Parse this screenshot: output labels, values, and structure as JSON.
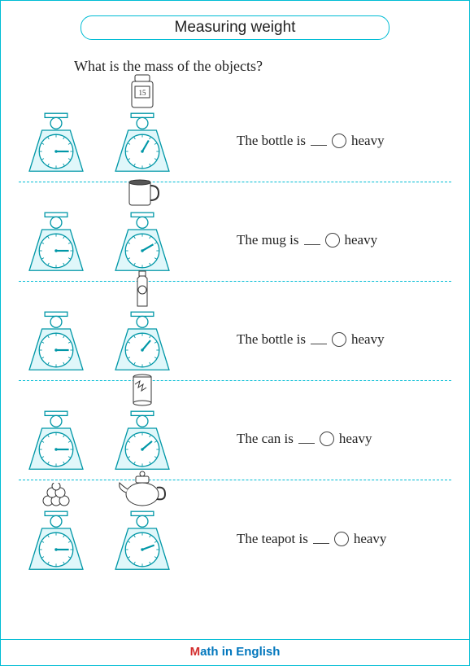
{
  "title": "Measuring weight",
  "question": "What is the mass of the objects?",
  "items": [
    {
      "label_pre": "The bottle is ",
      "label_post": " heavy",
      "object": "bottle-square",
      "left_angle": 90,
      "right_angle": 30
    },
    {
      "label_pre": "The mug is ",
      "label_post": " heavy",
      "object": "mug",
      "left_angle": 90,
      "right_angle": 60
    },
    {
      "label_pre": "The bottle is ",
      "label_post": " heavy",
      "object": "bottle-tall",
      "left_angle": 90,
      "right_angle": 40
    },
    {
      "label_pre": "The can is ",
      "label_post": " heavy",
      "object": "can",
      "left_angle": 90,
      "right_angle": 50
    },
    {
      "label_pre": "The teapot is ",
      "label_post": " heavy",
      "object": "teapot",
      "left_angle": 90,
      "right_angle": 70,
      "left_object": "balls"
    }
  ],
  "colors": {
    "accent": "#00bcd4",
    "scale_stroke": "#0097a7",
    "scale_fill": "#e0f7fa"
  },
  "footer": {
    "m": "M",
    "rest": "ath in English"
  }
}
